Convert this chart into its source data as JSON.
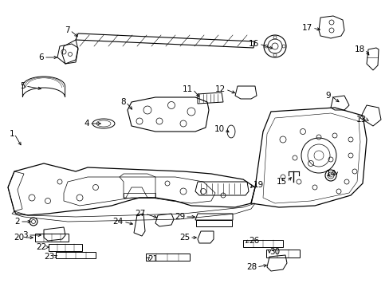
{
  "background_color": "#ffffff",
  "figure_width": 4.89,
  "figure_height": 3.6,
  "dpi": 100,
  "line_color": "#000000",
  "text_color": "#000000",
  "font_size": 7.5
}
